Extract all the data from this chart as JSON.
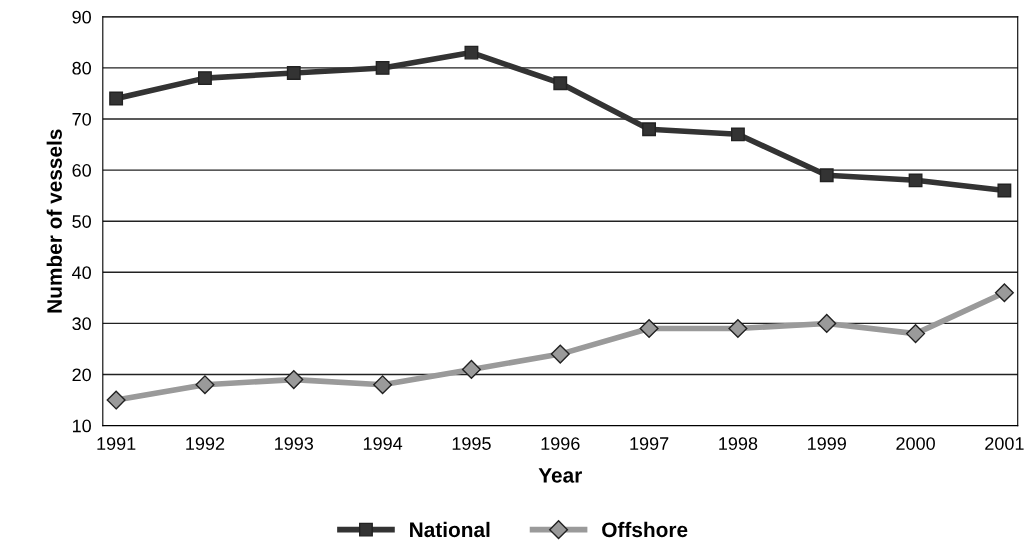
{
  "chart_data": {
    "type": "line",
    "xlabel": "Year",
    "ylabel": "Number of vessels",
    "categories": [
      "1991",
      "1992",
      "1993",
      "1994",
      "1995",
      "1996",
      "1997",
      "1998",
      "1999",
      "2000",
      "2001"
    ],
    "series": [
      {
        "name": "National",
        "color": "#333333",
        "marker": "square",
        "values": [
          74,
          78,
          79,
          80,
          83,
          77,
          68,
          67,
          59,
          58,
          56
        ]
      },
      {
        "name": "Offshore",
        "color": "#9a9a9a",
        "marker": "diamond",
        "values": [
          15,
          18,
          19,
          18,
          21,
          24,
          29,
          29,
          30,
          28,
          36
        ]
      }
    ],
    "ylim": [
      10,
      90
    ],
    "yticks": [
      10,
      20,
      30,
      40,
      50,
      60,
      70,
      80,
      90
    ],
    "grid": "y",
    "legend": "bottom",
    "line_style": "solid"
  }
}
